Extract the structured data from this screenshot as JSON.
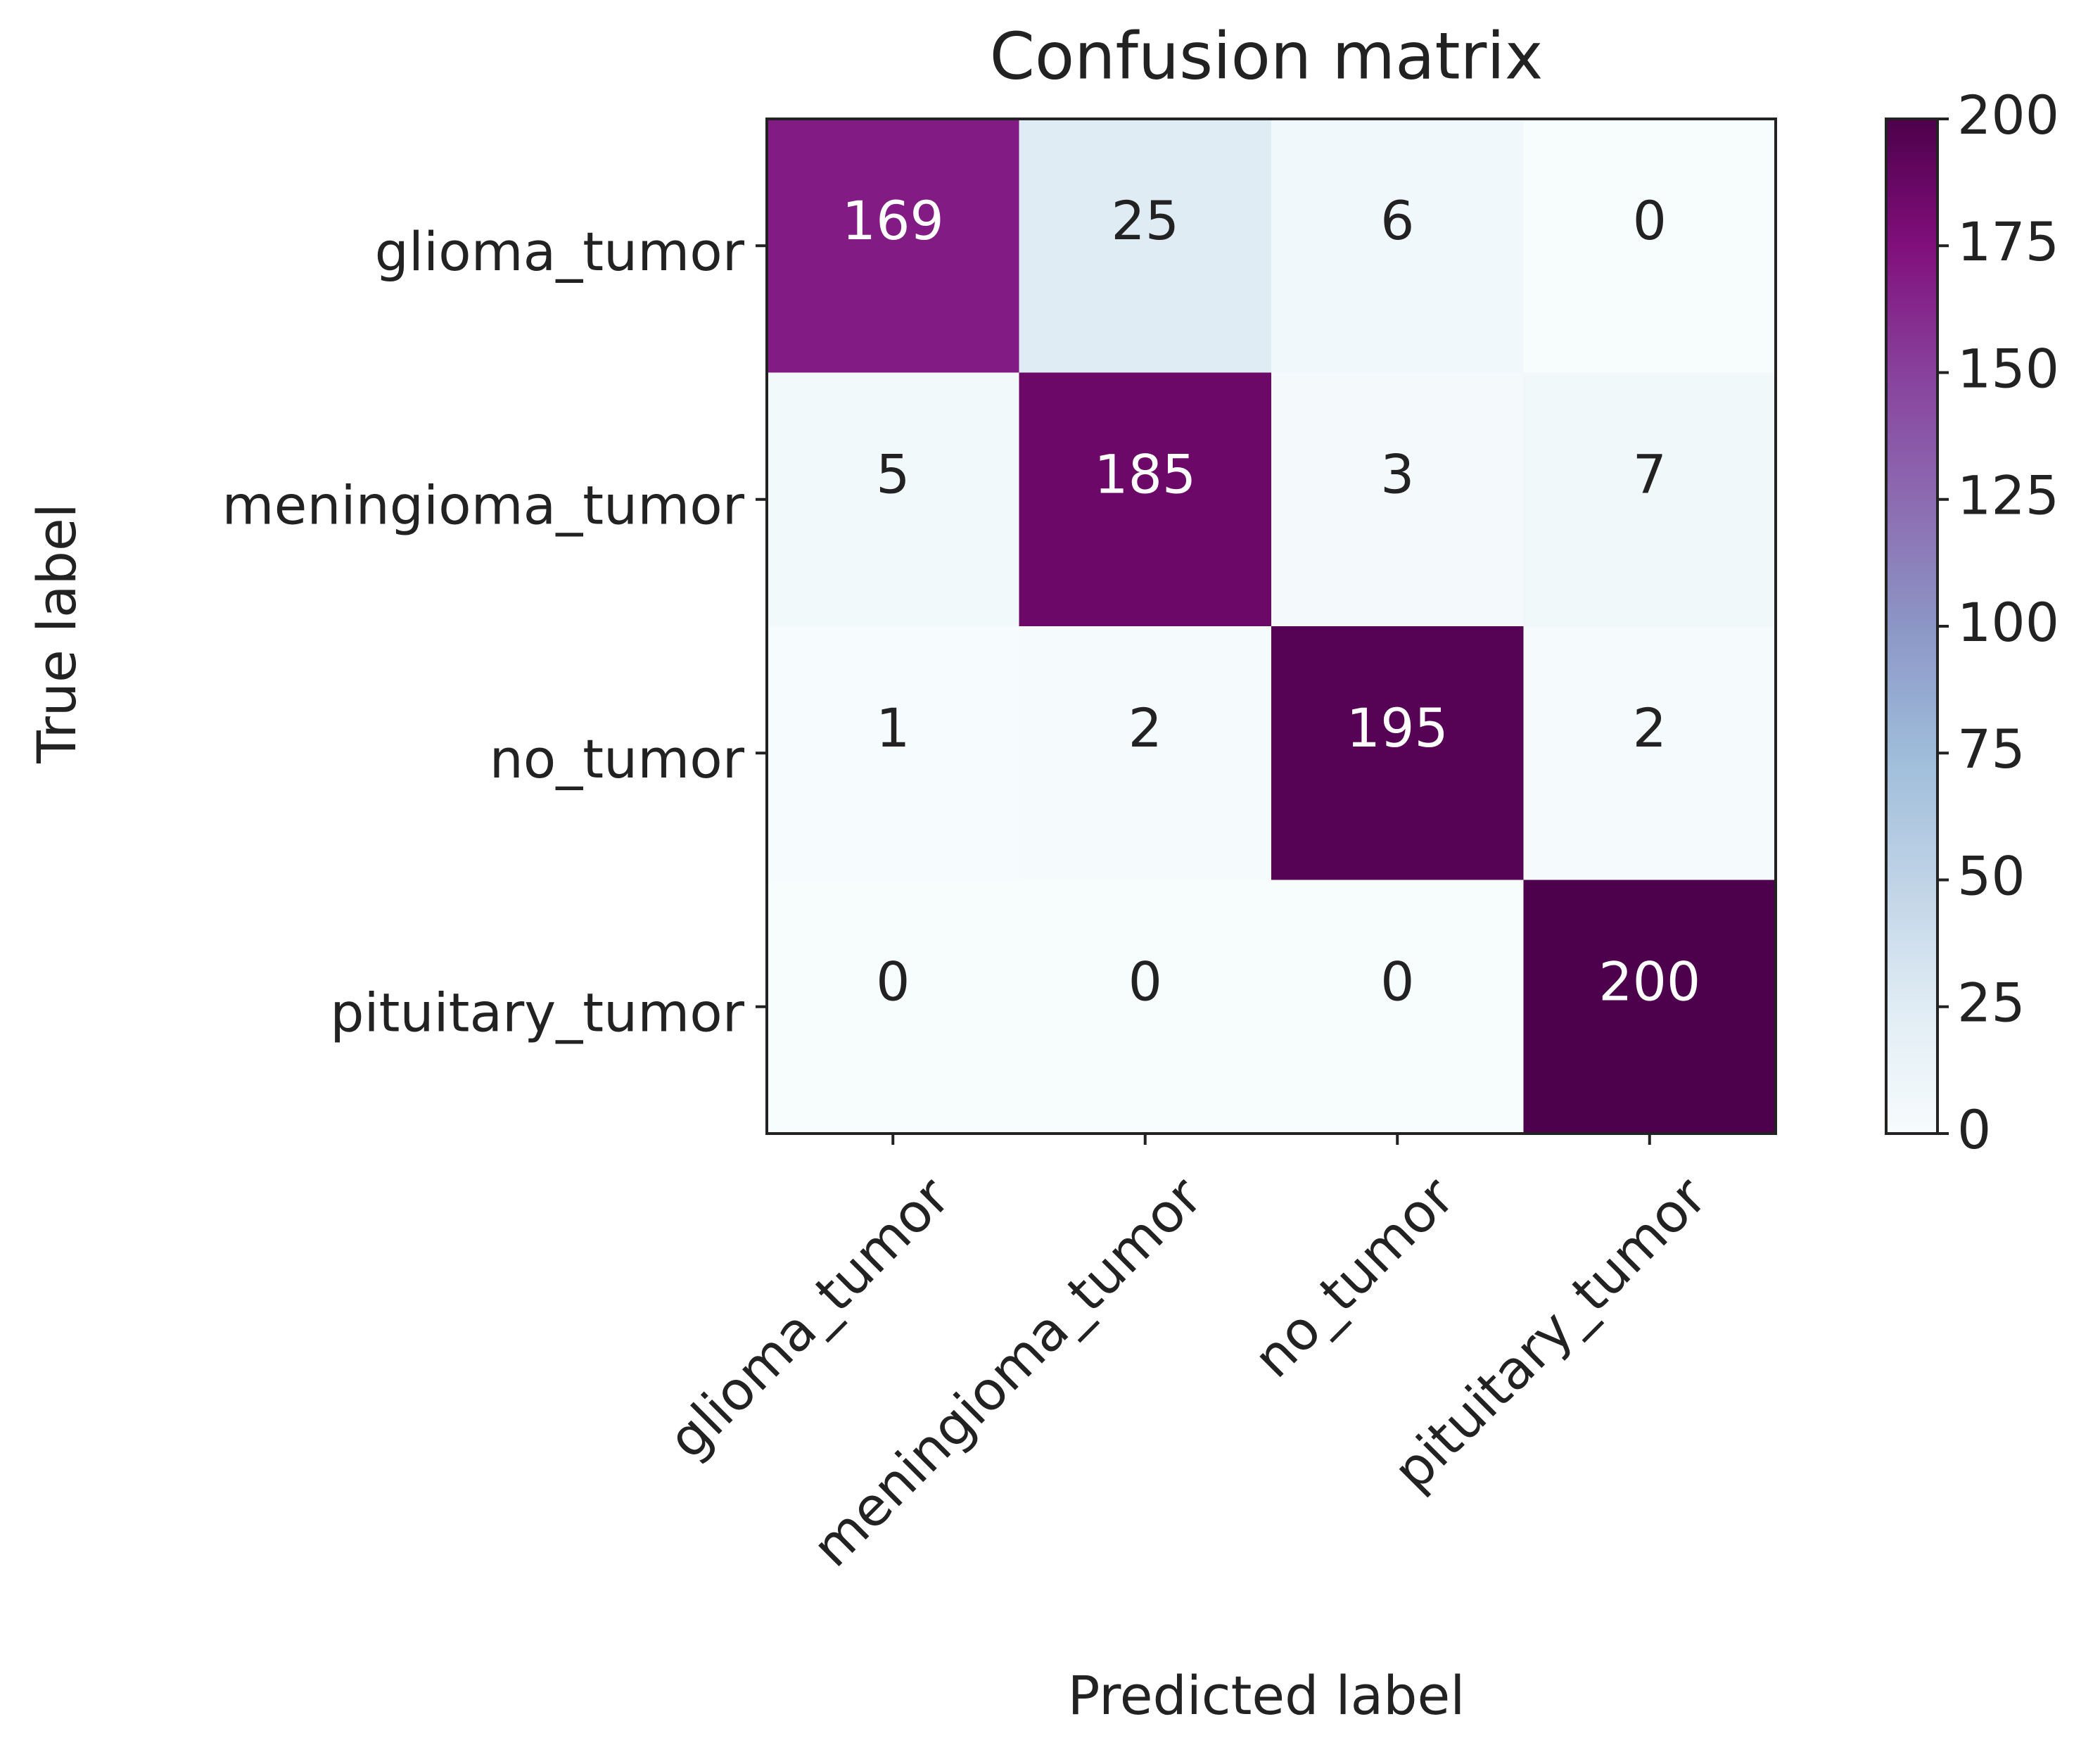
{
  "chart_data": {
    "type": "heatmap",
    "title": "Confusion matrix",
    "x_label": "Predicted label",
    "y_label": "True label",
    "x_categories": [
      "glioma_tumor",
      "meningioma_tumor",
      "no_tumor",
      "pituitary_tumor"
    ],
    "y_categories": [
      "glioma_tumor",
      "meningioma_tumor",
      "no_tumor",
      "pituitary_tumor"
    ],
    "values": [
      [
        169,
        25,
        6,
        0
      ],
      [
        5,
        185,
        3,
        7
      ],
      [
        1,
        2,
        195,
        2
      ],
      [
        0,
        0,
        0,
        200
      ]
    ],
    "colormap": "BuPu",
    "clim": [
      0,
      200
    ],
    "colorbar_ticks": [
      0,
      25,
      50,
      75,
      100,
      125,
      150,
      175,
      200
    ]
  }
}
